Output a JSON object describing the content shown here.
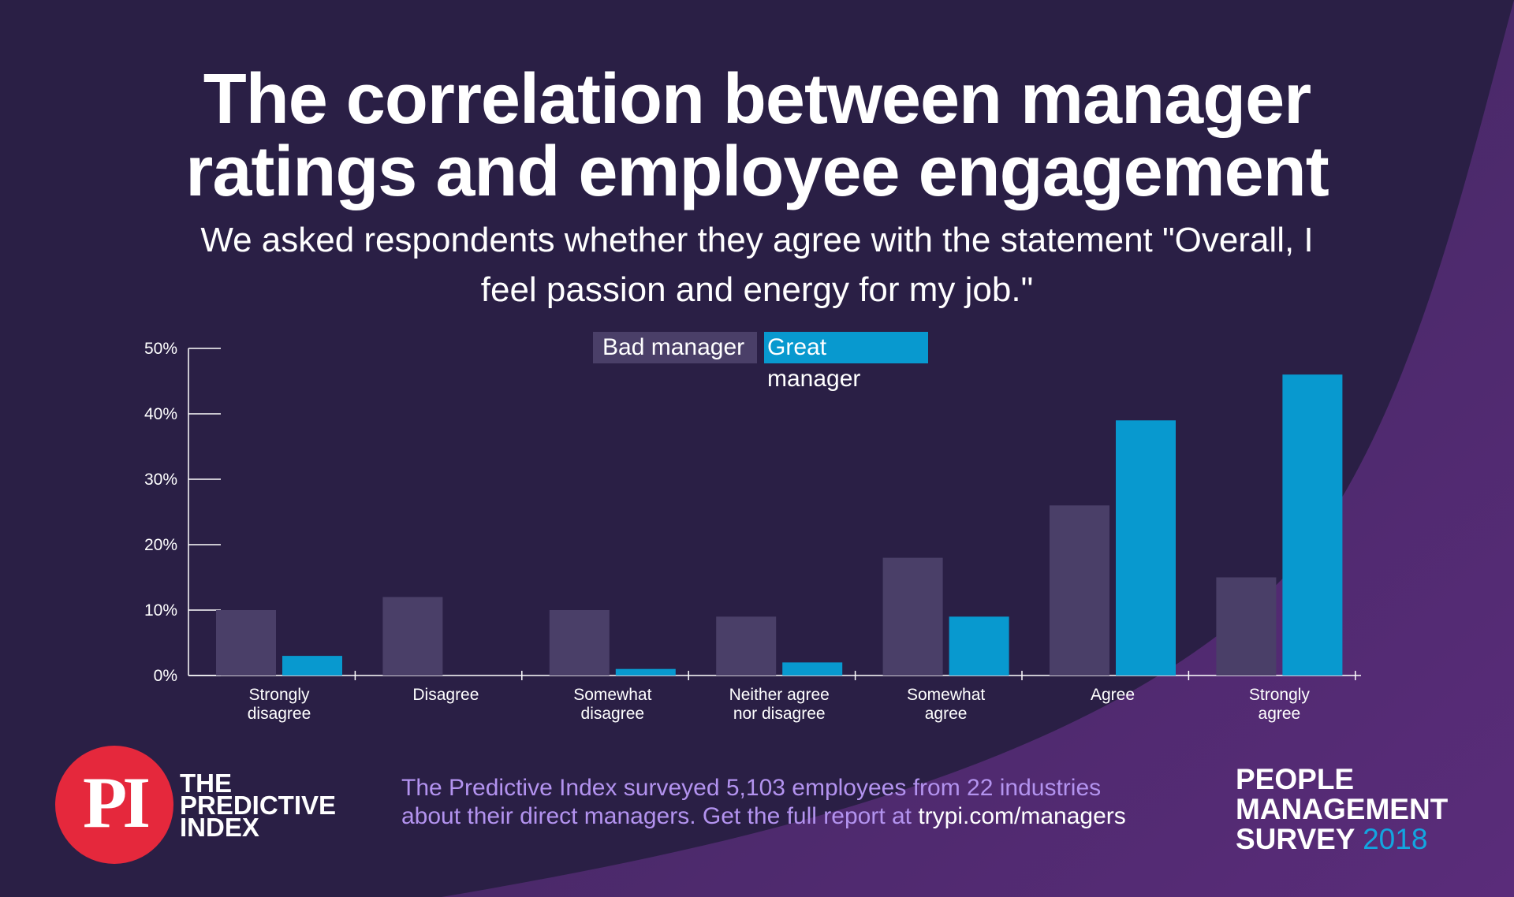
{
  "header": {
    "title_line1": "The correlation between manager",
    "title_line2": "ratings and employee engagement",
    "subtitle_line1": "We asked respondents whether they agree with the statement \"Overall, I",
    "subtitle_line2": "feel passion and energy for my job.\""
  },
  "colors": {
    "background": "#2a1f45",
    "bad_manager": "#4a3f68",
    "great_manager": "#0899cf",
    "accent_red": "#e5283c",
    "footnote": "#b393ef"
  },
  "chart_data": {
    "type": "bar",
    "categories": [
      [
        "Strongly",
        "disagree"
      ],
      [
        "Disagree"
      ],
      [
        "Somewhat",
        "disagree"
      ],
      [
        "Neither agree",
        "nor disagree"
      ],
      [
        "Somewhat",
        "agree"
      ],
      [
        "Agree"
      ],
      [
        "Strongly",
        "agree"
      ]
    ],
    "series": [
      {
        "name": "Bad manager",
        "values": [
          10,
          12,
          10,
          9,
          18,
          26,
          15
        ]
      },
      {
        "name": "Great manager",
        "values": [
          3,
          0,
          1,
          2,
          9,
          39,
          46
        ]
      }
    ],
    "y_ticks": [
      {
        "value": 50,
        "label": "50%"
      },
      {
        "value": 40,
        "label": "40%"
      },
      {
        "value": 30,
        "label": "30%"
      },
      {
        "value": 20,
        "label": "20%"
      },
      {
        "value": 10,
        "label": "10%"
      },
      {
        "value": 0,
        "label": "0%"
      }
    ],
    "ylim": [
      0,
      50
    ],
    "legend_position": "top-center"
  },
  "footer": {
    "logo_mark": "PI",
    "logo_line1": "THE",
    "logo_line2": "PREDICTIVE",
    "logo_line3": "INDEX",
    "footnote_line1": "The Predictive Index surveyed 5,103 employees from 22 industries",
    "footnote_line2_text": "about their direct managers. Get the full report at ",
    "footnote_line2_url": "trypi.com/managers",
    "survey_line1": "PEOPLE",
    "survey_line2": "MANAGEMENT",
    "survey_line3_text": "SURVEY",
    "survey_year": "2018"
  }
}
